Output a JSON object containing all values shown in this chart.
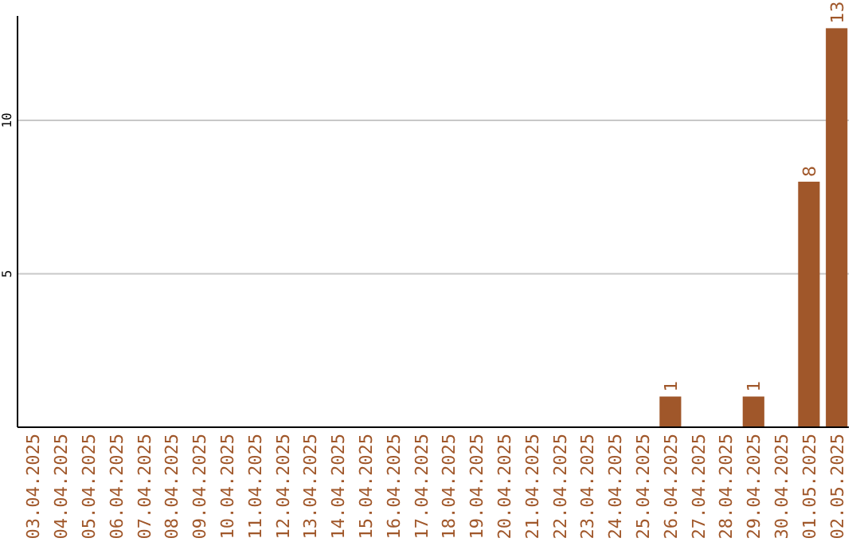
{
  "chart_data": {
    "type": "bar",
    "categories": [
      "03.04.2025",
      "04.04.2025",
      "05.04.2025",
      "06.04.2025",
      "07.04.2025",
      "08.04.2025",
      "09.04.2025",
      "10.04.2025",
      "11.04.2025",
      "12.04.2025",
      "13.04.2025",
      "14.04.2025",
      "15.04.2025",
      "16.04.2025",
      "17.04.2025",
      "18.04.2025",
      "19.04.2025",
      "20.04.2025",
      "21.04.2025",
      "22.04.2025",
      "23.04.2025",
      "24.04.2025",
      "25.04.2025",
      "26.04.2025",
      "27.04.2025",
      "28.04.2025",
      "29.04.2025",
      "30.04.2025",
      "01.05.2025",
      "02.05.2025"
    ],
    "values": [
      0,
      0,
      0,
      0,
      0,
      0,
      0,
      0,
      0,
      0,
      0,
      0,
      0,
      0,
      0,
      0,
      0,
      0,
      0,
      0,
      0,
      0,
      0,
      1,
      0,
      0,
      1,
      0,
      8,
      13
    ],
    "value_labels": [
      null,
      null,
      null,
      null,
      null,
      null,
      null,
      null,
      null,
      null,
      null,
      null,
      null,
      null,
      null,
      null,
      null,
      null,
      null,
      null,
      null,
      null,
      null,
      "1",
      null,
      null,
      "1",
      null,
      "8",
      "13"
    ],
    "color": "#a0572a",
    "ylim": [
      0,
      13.4
    ],
    "yticks": [
      5,
      10
    ],
    "grid": "y"
  }
}
